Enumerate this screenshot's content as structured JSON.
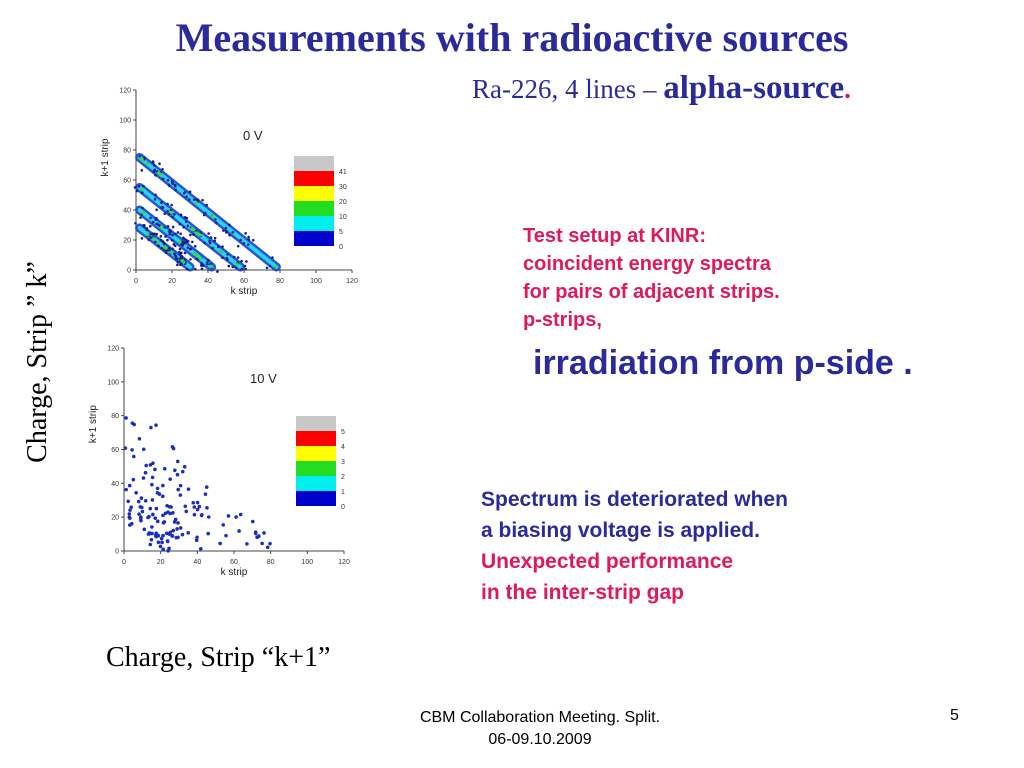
{
  "slide": {
    "title": "Measurements with radioactive sources",
    "subtitle_prefix": "Ra-226,  4 lines – ",
    "subtitle_emph": "alpha-source",
    "subtitle_dot": ".",
    "y_label": "Charge, Strip ” k”",
    "x_label": "Charge, Strip “k+1”",
    "setup_lines": [
      "Test setup at KINR:",
      "coincident energy spectra",
      "for pairs of adjacent strips.",
      "p-strips,"
    ],
    "irradiation": "irradiation from p-side .",
    "result_lines": [
      "Spectrum is deteriorated when",
      "a biasing voltage is applied."
    ],
    "unexpected_lines": [
      "Unexpected performance",
      "in the inter-strip gap"
    ],
    "footer_line1": "CBM Collaboration Meeting. Split.",
    "footer_line2": "06-09.10.2009",
    "page_number": "5"
  },
  "colors": {
    "title_blue": "#2a2a9a",
    "accent_magenta": "#e0185c"
  },
  "chart_data": [
    {
      "type": "heatmap",
      "voltage_label": "0 V",
      "xlabel": "k strip",
      "ylabel": "k+1 strip",
      "xlim": [
        0,
        120
      ],
      "ylim": [
        0,
        120
      ],
      "x_ticks": [
        0,
        20,
        40,
        60,
        80,
        100,
        120
      ],
      "y_ticks": [
        0,
        20,
        40,
        60,
        80,
        100,
        120
      ],
      "color_scale": {
        "labels": [
          "41",
          "30",
          "20",
          "10",
          "5",
          "0"
        ],
        "colors": [
          "#ff0000",
          "#ffff00",
          "#22dd22",
          "#00eeee",
          "#0000cc"
        ],
        "top_color": "#c8c8c8"
      },
      "bands": [
        {
          "x1": 2,
          "y1": 75,
          "x2": 78,
          "y2": 2
        },
        {
          "x1": 2,
          "y1": 55,
          "x2": 58,
          "y2": 2
        },
        {
          "x1": 2,
          "y1": 40,
          "x2": 42,
          "y2": 2
        },
        {
          "x1": 2,
          "y1": 28,
          "x2": 30,
          "y2": 2
        }
      ]
    },
    {
      "type": "heatmap",
      "voltage_label": "10 V",
      "xlabel": "k strip",
      "ylabel": "k+1 strip",
      "xlim": [
        0,
        120
      ],
      "ylim": [
        0,
        120
      ],
      "x_ticks": [
        0,
        20,
        40,
        60,
        80,
        100,
        120
      ],
      "y_ticks": [
        0,
        20,
        40,
        60,
        80,
        100,
        120
      ],
      "color_scale": {
        "labels": [
          "5",
          "4",
          "3",
          "2",
          "1",
          "0"
        ],
        "colors": [
          "#ff0000",
          "#ffff00",
          "#22dd22",
          "#00eeee",
          "#0000cc"
        ],
        "top_color": "#c8c8c8"
      },
      "bands": [
        {
          "x1": 3,
          "y1": 78,
          "x2": 78,
          "y2": 3
        },
        {
          "x1": 3,
          "y1": 60,
          "x2": 58,
          "y2": 3
        },
        {
          "x1": 3,
          "y1": 40,
          "x2": 40,
          "y2": 3
        },
        {
          "x1": 3,
          "y1": 25,
          "x2": 25,
          "y2": 3
        }
      ]
    }
  ]
}
